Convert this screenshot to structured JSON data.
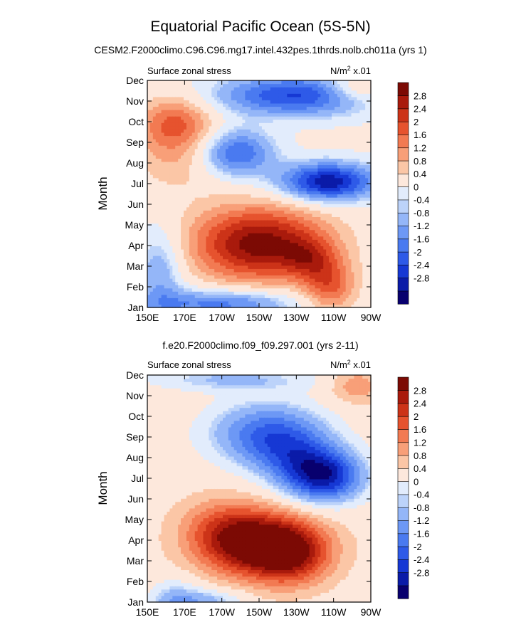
{
  "title": "Equatorial Pacific Ocean (5S-5N)",
  "colors": {
    "palette": [
      "#08006e",
      "#0a1ba8",
      "#1638d4",
      "#2e5ae8",
      "#4a7af0",
      "#6d98f5",
      "#94b6f8",
      "#bcd3fa",
      "#e2ecfc",
      "#fde8dc",
      "#fbc6a6",
      "#f89f78",
      "#f27a52",
      "#e6532e",
      "#cc3318",
      "#a91a0c",
      "#7c0a04"
    ],
    "axis": "#000000"
  },
  "chart_data": [
    {
      "type": "contour",
      "subtitle": "CESM2.F2000climo.C96.C96.mg17.intel.432pes.1thrds.nolb.ch011a (yrs 1)",
      "left_label": "Surface zonal stress",
      "units": "N/m",
      "units_sup": "2",
      "units_scale": " x.01",
      "ylabel": "Month",
      "xticks": [
        "150E",
        "170E",
        "170W",
        "150W",
        "130W",
        "110W",
        "90W"
      ],
      "yticks": [
        "Jan",
        "Feb",
        "Mar",
        "Apr",
        "May",
        "Jun",
        "Jul",
        "Aug",
        "Sep",
        "Oct",
        "Nov",
        "Dec"
      ],
      "xlim": [
        150,
        270
      ],
      "levels": [
        "2.8",
        "2.4",
        "2",
        "1.6",
        "1.2",
        "0.8",
        "0.4",
        "0",
        "-0.4",
        "-0.8",
        "-1.2",
        "-1.6",
        "-2",
        "-2.4",
        "-2.8"
      ],
      "background": 0.15,
      "features": [
        {
          "lon": 210,
          "month": 4.1,
          "amp": 3.1,
          "slon": 26,
          "smon": 1.3
        },
        {
          "lon": 248,
          "month": 2.0,
          "amp": 1.6,
          "slon": 10,
          "smon": 0.9
        },
        {
          "lon": 237,
          "month": 3.4,
          "amp": 1.1,
          "slon": 10,
          "smon": 0.7
        },
        {
          "lon": 165,
          "month": 10.0,
          "amp": 1.6,
          "slon": 14,
          "smon": 0.9
        },
        {
          "lon": 165,
          "month": 8.3,
          "amp": 0.8,
          "slon": 16,
          "smon": 1.2
        },
        {
          "lon": 230,
          "month": 11.3,
          "amp": -2.4,
          "slon": 30,
          "smon": 0.7
        },
        {
          "lon": 198,
          "month": 8.5,
          "amp": -2.0,
          "slon": 14,
          "smon": 0.8
        },
        {
          "lon": 247,
          "month": 7.1,
          "amp": -3.1,
          "slon": 18,
          "smon": 0.65
        },
        {
          "lon": 190,
          "month": 1.2,
          "amp": -1.8,
          "slon": 28,
          "smon": 0.5
        },
        {
          "lon": 157,
          "month": 2.8,
          "amp": -1.2,
          "slon": 9,
          "smon": 1.6
        },
        {
          "lon": 262,
          "month": 11.6,
          "amp": 1.2,
          "slon": 12,
          "smon": 0.5
        }
      ]
    },
    {
      "type": "contour",
      "subtitle": "f.e20.F2000climo.f09_f09.297.001 (yrs 2-11)",
      "left_label": "Surface zonal stress",
      "units": "N/m",
      "units_sup": "2",
      "units_scale": " x.01",
      "ylabel": "Month",
      "xticks": [
        "150E",
        "170E",
        "170W",
        "150W",
        "130W",
        "110W",
        "90W"
      ],
      "yticks": [
        "Jan",
        "Feb",
        "Mar",
        "Apr",
        "May",
        "Jun",
        "Jul",
        "Aug",
        "Sep",
        "Oct",
        "Nov",
        "Dec"
      ],
      "xlim": [
        150,
        270
      ],
      "levels": [
        "2.8",
        "2.4",
        "2",
        "1.6",
        "1.2",
        "0.8",
        "0.4",
        "0",
        "-0.4",
        "-0.8",
        "-1.2",
        "-1.6",
        "-2",
        "-2.4",
        "-2.8"
      ],
      "background": 0.35,
      "features": [
        {
          "lon": 210,
          "month": 3.8,
          "amp": 3.3,
          "slon": 22,
          "smon": 1.1
        },
        {
          "lon": 228,
          "month": 3.2,
          "amp": 1.5,
          "slon": 14,
          "smon": 1.0
        },
        {
          "lon": 190,
          "month": 4.8,
          "amp": 0.9,
          "slon": 16,
          "smon": 1.0
        },
        {
          "lon": 214,
          "month": 9.2,
          "amp": -2.0,
          "slon": 22,
          "smon": 1.1
        },
        {
          "lon": 245,
          "month": 7.1,
          "amp": -3.0,
          "slon": 15,
          "smon": 0.9
        },
        {
          "lon": 228,
          "month": 8.1,
          "amp": -1.2,
          "slon": 16,
          "smon": 1.0
        },
        {
          "lon": 195,
          "month": 11.8,
          "amp": -1.0,
          "slon": 32,
          "smon": 0.4
        },
        {
          "lon": 165,
          "month": 0.9,
          "amp": -1.3,
          "slon": 10,
          "smon": 0.8
        },
        {
          "lon": 185,
          "month": 1.1,
          "amp": -1.0,
          "slon": 12,
          "smon": 0.4
        },
        {
          "lon": 262,
          "month": 11.5,
          "amp": 1.0,
          "slon": 10,
          "smon": 0.6
        }
      ]
    }
  ]
}
